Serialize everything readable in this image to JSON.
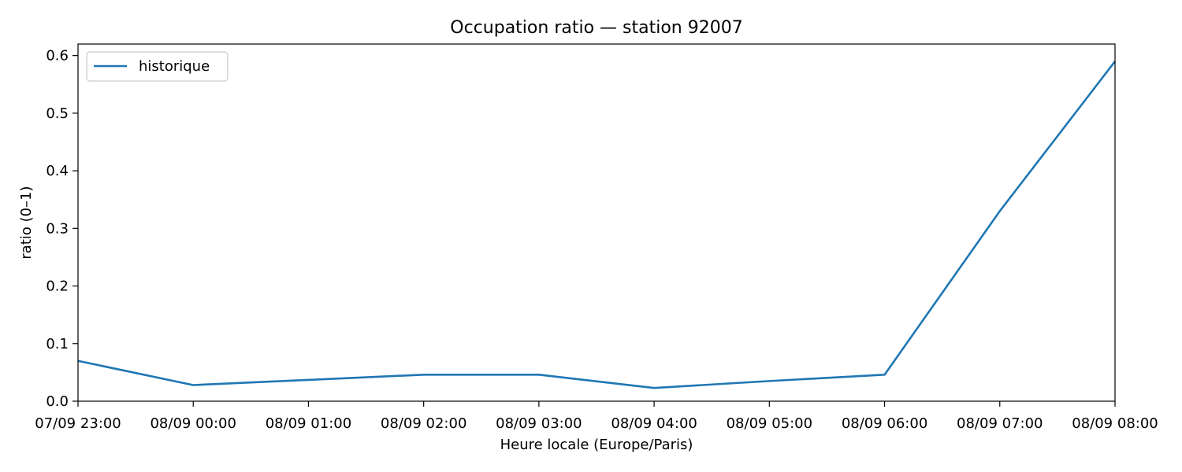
{
  "chart_data": {
    "type": "line",
    "title": "Occupation ratio — station 92007",
    "xlabel": "Heure locale (Europe/Paris)",
    "ylabel": "ratio (0–1)",
    "x_ticks": [
      "07/09 23:00",
      "08/09 00:00",
      "08/09 01:00",
      "08/09 02:00",
      "08/09 03:00",
      "08/09 04:00",
      "08/09 05:00",
      "08/09 06:00",
      "08/09 07:00",
      "08/09 08:00"
    ],
    "y_ticks": [
      "0.0",
      "0.1",
      "0.2",
      "0.3",
      "0.4",
      "0.5",
      "0.6"
    ],
    "ylim": [
      0.0,
      0.62
    ],
    "grid": false,
    "legend_position": "top-left",
    "series": [
      {
        "name": "historique",
        "color": "#1f77b4",
        "x": [
          "07/09 23:00",
          "08/09 00:00",
          "08/09 01:00",
          "08/09 02:00",
          "08/09 03:00",
          "08/09 04:00",
          "08/09 05:00",
          "08/09 06:00",
          "08/09 07:00",
          "08/09 08:00"
        ],
        "y": [
          0.07,
          0.028,
          0.037,
          0.046,
          0.046,
          0.023,
          0.035,
          0.046,
          0.33,
          0.59
        ]
      }
    ]
  }
}
